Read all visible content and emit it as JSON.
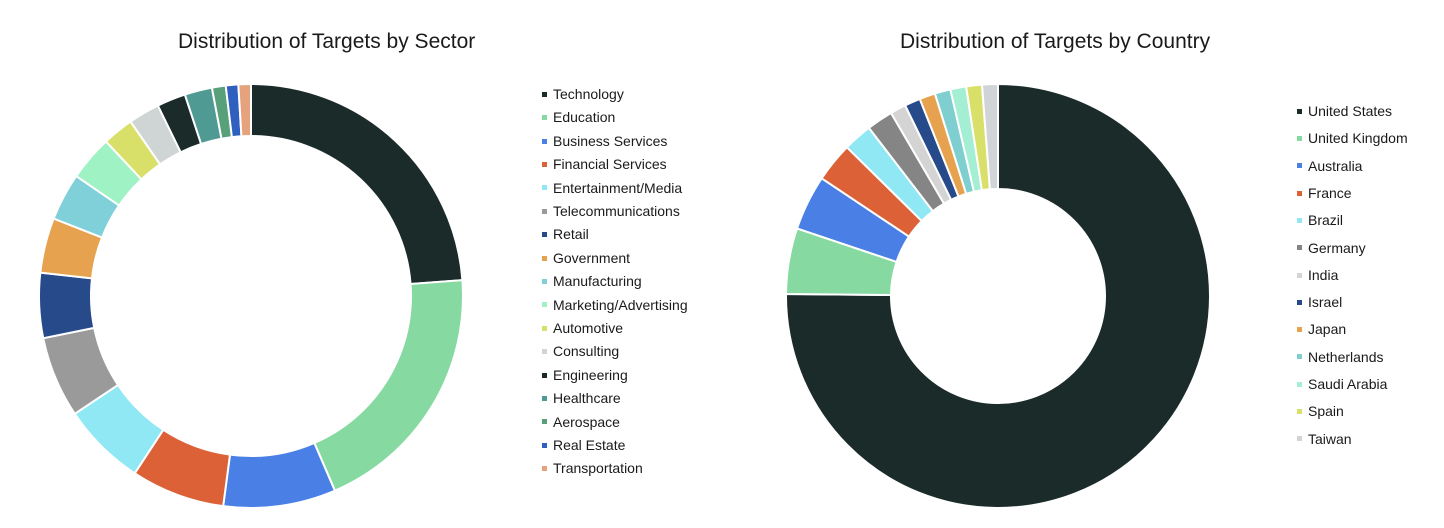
{
  "chart_data": [
    {
      "type": "pie",
      "title": "Distribution of Targets by Sector",
      "unit": "%",
      "categories": [
        "Technology",
        "Education",
        "Business Services",
        "Financial Services",
        "Entertainment/Media",
        "Telecommunications",
        "Retail",
        "Government",
        "Manufacturing",
        "Marketing/Advertising",
        "Automotive",
        "Consulting",
        "Engineering",
        "Healthcare",
        "Aerospace",
        "Real Estate",
        "Transportation"
      ],
      "values": [
        25.0,
        20.7,
        9.0,
        7.5,
        6.7,
        6.5,
        5.2,
        4.4,
        3.8,
        3.6,
        2.5,
        2.5,
        2.3,
        2.2,
        1.1,
        1.0,
        1.0
      ],
      "colors": [
        "#1b2b2a",
        "#86d9a1",
        "#4a7fe6",
        "#dd6137",
        "#8fe8f4",
        "#9a9a9a",
        "#264a8a",
        "#e6a24e",
        "#7fd0d8",
        "#9ff2c3",
        "#d9e06a",
        "#cfd4d4",
        "#1b2b2a",
        "#4f9a92",
        "#57a07a",
        "#2f5fbf",
        "#e6a27c"
      ],
      "legend": "right"
    },
    {
      "type": "pie",
      "title": "Distribution of Targets by Country",
      "unit": "%",
      "categories": [
        "United States",
        "United Kingdom",
        "Australia",
        "France",
        "Brazil",
        "Germany",
        "India",
        "Israel",
        "Japan",
        "Netherlands",
        "Saudi Arabia",
        "Spain",
        "Taiwan"
      ],
      "values": [
        75.0,
        5.0,
        4.2,
        3.0,
        2.2,
        2.0,
        1.2,
        1.2,
        1.2,
        1.2,
        1.2,
        1.2,
        1.2
      ],
      "colors": [
        "#1b2b2a",
        "#86d9a1",
        "#4a7fe6",
        "#dd6137",
        "#8fe8f4",
        "#858585",
        "#d4d4d4",
        "#264a8a",
        "#e6a24e",
        "#7fcfd0",
        "#a4eed4",
        "#d9e06a",
        "#d0d4d6"
      ],
      "legend": "right"
    }
  ]
}
